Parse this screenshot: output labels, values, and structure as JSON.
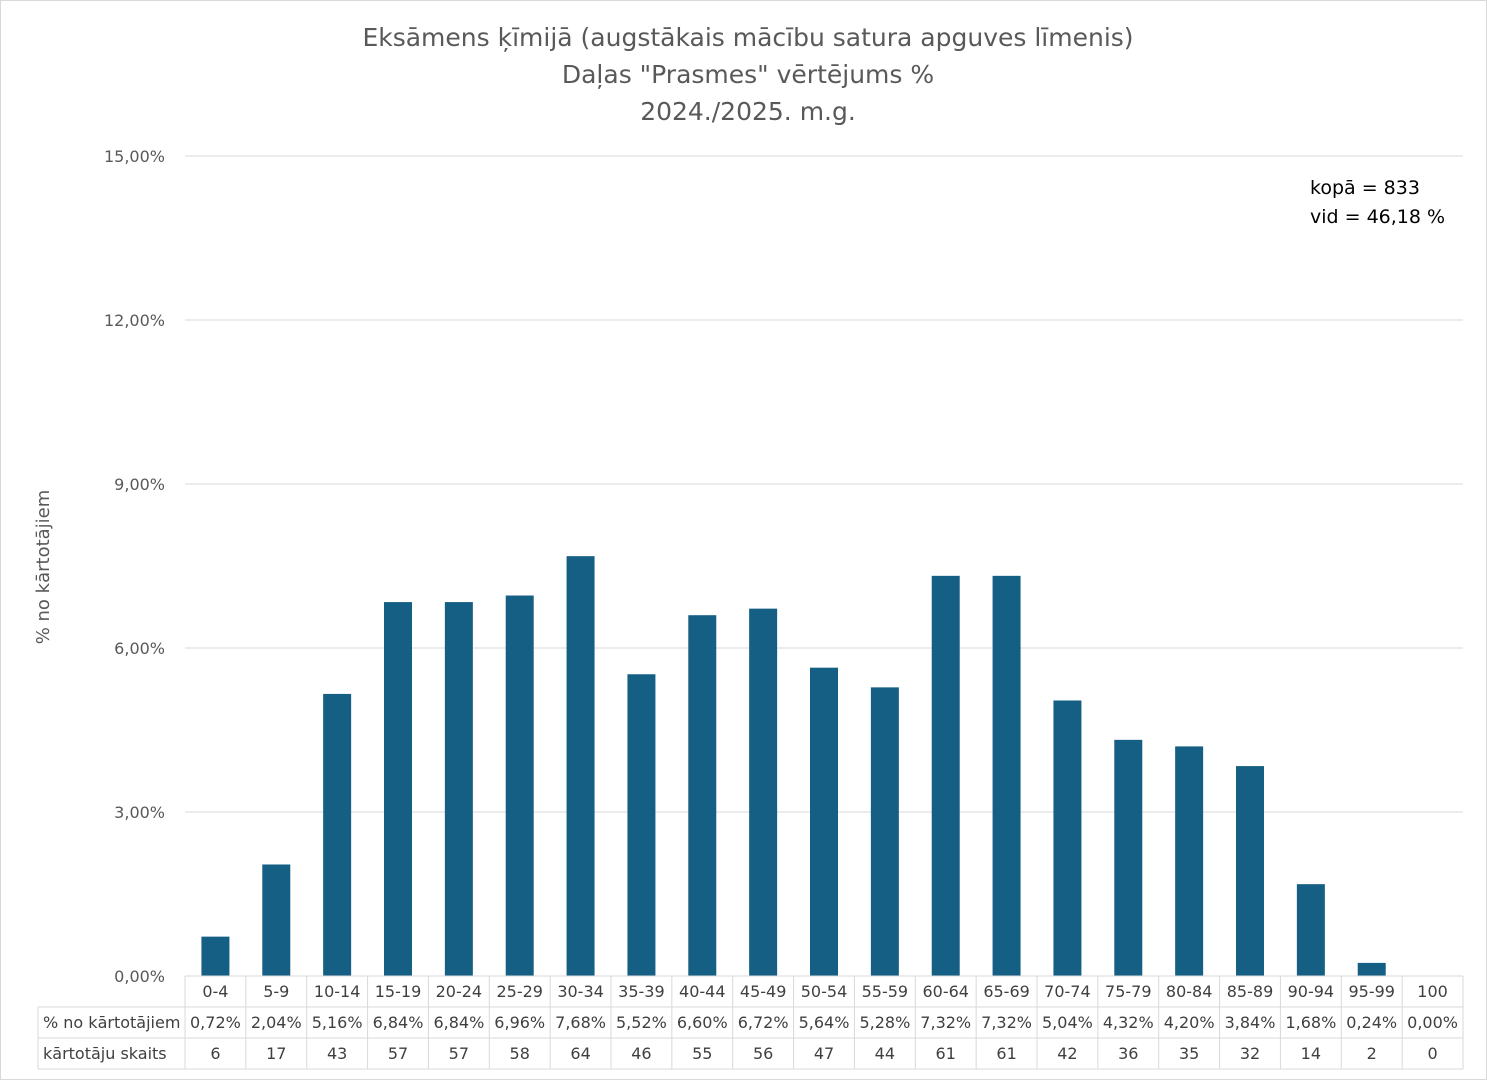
{
  "chart_data": {
    "type": "bar",
    "title_lines": [
      "Eksāmens ķīmijā (augstākais mācību satura apguves līmenis)",
      "Daļas \"Prasmes\" vērtējums %",
      "2024./2025. m.g."
    ],
    "ylabel": "% no kārtotājiem",
    "ylim": [
      0,
      15
    ],
    "yticks": [
      "0,00%",
      "3,00%",
      "6,00%",
      "9,00%",
      "12,00%",
      "15,00%"
    ],
    "grid": true,
    "bar_color": "#165f84",
    "annotations": [
      "kopā = 833",
      "vid = 46,18 %"
    ],
    "categories": [
      "0-4",
      "5-9",
      "10-14",
      "15-19",
      "20-24",
      "25-29",
      "30-34",
      "35-39",
      "40-44",
      "45-49",
      "50-54",
      "55-59",
      "60-64",
      "65-69",
      "70-74",
      "75-79",
      "80-84",
      "85-89",
      "90-94",
      "95-99",
      "100"
    ],
    "series": [
      {
        "name": "% no kārtotājiem",
        "values": [
          0.72,
          2.04,
          5.16,
          6.84,
          6.84,
          6.96,
          7.68,
          5.52,
          6.6,
          6.72,
          5.64,
          5.28,
          7.32,
          7.32,
          5.04,
          4.32,
          4.2,
          3.84,
          1.68,
          0.24,
          0.0
        ],
        "labels": [
          "0,72%",
          "2,04%",
          "5,16%",
          "6,84%",
          "6,84%",
          "6,96%",
          "7,68%",
          "5,52%",
          "6,60%",
          "6,72%",
          "5,64%",
          "5,28%",
          "7,32%",
          "7,32%",
          "5,04%",
          "4,32%",
          "4,20%",
          "3,84%",
          "1,68%",
          "0,24%",
          "0,00%"
        ]
      }
    ],
    "data_table": {
      "rows": [
        {
          "name": "% no kārtotājiem",
          "cells": [
            "0,72%",
            "2,04%",
            "5,16%",
            "6,84%",
            "6,84%",
            "6,96%",
            "7,68%",
            "5,52%",
            "6,60%",
            "6,72%",
            "5,64%",
            "5,28%",
            "7,32%",
            "7,32%",
            "5,04%",
            "4,32%",
            "4,20%",
            "3,84%",
            "1,68%",
            "0,24%",
            "0,00%"
          ]
        },
        {
          "name": "kārtotāju skaits",
          "cells": [
            "6",
            "17",
            "43",
            "57",
            "57",
            "58",
            "64",
            "46",
            "55",
            "56",
            "47",
            "44",
            "61",
            "61",
            "42",
            "36",
            "35",
            "32",
            "14",
            "2",
            "0"
          ]
        }
      ]
    }
  }
}
